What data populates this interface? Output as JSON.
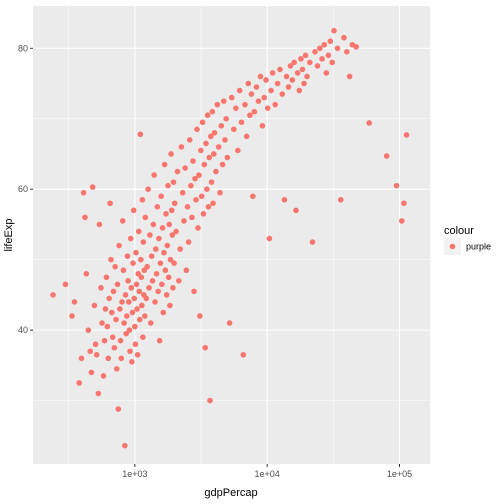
{
  "chart_data": {
    "type": "scatter",
    "xlabel": "gdpPercap",
    "ylabel": "lifeExp",
    "x_scale": "log10",
    "xlim": [
      170,
      170000
    ],
    "ylim": [
      21,
      86
    ],
    "x_ticks": [
      {
        "value": 1000,
        "label": "1e+03"
      },
      {
        "value": 10000,
        "label": "1e+04"
      },
      {
        "value": 100000,
        "label": "1e+05"
      }
    ],
    "y_ticks": [
      {
        "value": 40,
        "label": "40"
      },
      {
        "value": 60,
        "label": "60"
      },
      {
        "value": 80,
        "label": "80"
      }
    ],
    "grid": true,
    "legend": {
      "position": "right",
      "title": "colour",
      "entries": [
        {
          "label": "purple",
          "color": "#F8766D"
        }
      ]
    },
    "point_color": "#F8766D",
    "panel_background": "#EBEBEB",
    "grid_color": "#FFFFFF",
    "series": [
      {
        "name": "purple",
        "points": [
          [
            241,
            45.0
          ],
          [
            299,
            46.5
          ],
          [
            335,
            42.0
          ],
          [
            350,
            44.0
          ],
          [
            380,
            32.5
          ],
          [
            395,
            36.0
          ],
          [
            410,
            59.5
          ],
          [
            420,
            56.0
          ],
          [
            430,
            48.0
          ],
          [
            445,
            40.0
          ],
          [
            460,
            37.0
          ],
          [
            470,
            34.0
          ],
          [
            480,
            60.3
          ],
          [
            495,
            43.5
          ],
          [
            505,
            38.0
          ],
          [
            515,
            36.5
          ],
          [
            530,
            31.0
          ],
          [
            540,
            55.0
          ],
          [
            555,
            46.0
          ],
          [
            565,
            41.0
          ],
          [
            580,
            33.5
          ],
          [
            590,
            38.5
          ],
          [
            600,
            43.0
          ],
          [
            610,
            47.5
          ],
          [
            620,
            40.5
          ],
          [
            630,
            36.0
          ],
          [
            640,
            44.5
          ],
          [
            650,
            58.0
          ],
          [
            660,
            50.0
          ],
          [
            670,
            42.5
          ],
          [
            680,
            39.0
          ],
          [
            690,
            45.5
          ],
          [
            700,
            37.5
          ],
          [
            710,
            49.0
          ],
          [
            720,
            41.5
          ],
          [
            730,
            34.5
          ],
          [
            740,
            46.5
          ],
          [
            750,
            28.8
          ],
          [
            760,
            52.0
          ],
          [
            770,
            43.0
          ],
          [
            780,
            38.5
          ],
          [
            790,
            36.0
          ],
          [
            800,
            44.0
          ],
          [
            810,
            55.5
          ],
          [
            820,
            48.5
          ],
          [
            830,
            41.0
          ],
          [
            840,
            23.6
          ],
          [
            850,
            45.0
          ],
          [
            860,
            39.5
          ],
          [
            870,
            42.0
          ],
          [
            880,
            50.5
          ],
          [
            890,
            47.0
          ],
          [
            900,
            44.0
          ],
          [
            910,
            40.0
          ],
          [
            920,
            37.0
          ],
          [
            930,
            53.0
          ],
          [
            940,
            46.0
          ],
          [
            950,
            35.5
          ],
          [
            960,
            42.5
          ],
          [
            970,
            49.5
          ],
          [
            980,
            57.0
          ],
          [
            990,
            44.5
          ],
          [
            1000,
            40.5
          ],
          [
            1010,
            38.0
          ],
          [
            1020,
            51.0
          ],
          [
            1030,
            46.5
          ],
          [
            1040,
            43.0
          ],
          [
            1050,
            36.5
          ],
          [
            1060,
            48.0
          ],
          [
            1070,
            54.0
          ],
          [
            1080,
            45.5
          ],
          [
            1090,
            41.5
          ],
          [
            1100,
            67.8
          ],
          [
            1110,
            50.0
          ],
          [
            1120,
            47.5
          ],
          [
            1130,
            43.5
          ],
          [
            1140,
            58.5
          ],
          [
            1150,
            39.0
          ],
          [
            1160,
            52.5
          ],
          [
            1170,
            45.0
          ],
          [
            1180,
            48.5
          ],
          [
            1190,
            42.0
          ],
          [
            1200,
            56.0
          ],
          [
            1220,
            44.5
          ],
          [
            1240,
            49.0
          ],
          [
            1260,
            60.0
          ],
          [
            1280,
            46.0
          ],
          [
            1300,
            53.5
          ],
          [
            1320,
            41.0
          ],
          [
            1340,
            50.5
          ],
          [
            1360,
            47.0
          ],
          [
            1380,
            55.0
          ],
          [
            1400,
            62.0
          ],
          [
            1420,
            44.0
          ],
          [
            1440,
            51.5
          ],
          [
            1460,
            48.0
          ],
          [
            1480,
            57.5
          ],
          [
            1500,
            45.5
          ],
          [
            1520,
            53.0
          ],
          [
            1540,
            38.5
          ],
          [
            1560,
            49.5
          ],
          [
            1580,
            59.0
          ],
          [
            1600,
            46.5
          ],
          [
            1620,
            54.5
          ],
          [
            1640,
            42.5
          ],
          [
            1660,
            51.0
          ],
          [
            1680,
            63.5
          ],
          [
            1700,
            48.5
          ],
          [
            1720,
            56.5
          ],
          [
            1740,
            45.0
          ],
          [
            1760,
            52.0
          ],
          [
            1780,
            60.5
          ],
          [
            1800,
            47.5
          ],
          [
            1820,
            55.0
          ],
          [
            1840,
            43.5
          ],
          [
            1860,
            50.0
          ],
          [
            1880,
            65.0
          ],
          [
            1900,
            57.0
          ],
          [
            1920,
            53.5
          ],
          [
            1940,
            46.0
          ],
          [
            1960,
            61.0
          ],
          [
            1980,
            49.5
          ],
          [
            2000,
            58.0
          ],
          [
            2050,
            54.0
          ],
          [
            2100,
            62.5
          ],
          [
            2150,
            47.0
          ],
          [
            2200,
            51.5
          ],
          [
            2250,
            66.0
          ],
          [
            2300,
            59.5
          ],
          [
            2350,
            55.5
          ],
          [
            2400,
            63.0
          ],
          [
            2450,
            48.5
          ],
          [
            2500,
            57.5
          ],
          [
            2550,
            52.5
          ],
          [
            2600,
            67.0
          ],
          [
            2650,
            60.5
          ],
          [
            2700,
            56.0
          ],
          [
            2750,
            64.0
          ],
          [
            2800,
            45.5
          ],
          [
            2850,
            61.5
          ],
          [
            2900,
            58.5
          ],
          [
            2950,
            68.5
          ],
          [
            3000,
            54.5
          ],
          [
            3050,
            62.0
          ],
          [
            3100,
            42.0
          ],
          [
            3150,
            65.5
          ],
          [
            3200,
            59.0
          ],
          [
            3250,
            69.5
          ],
          [
            3300,
            56.5
          ],
          [
            3350,
            63.5
          ],
          [
            3400,
            37.5
          ],
          [
            3450,
            66.5
          ],
          [
            3500,
            60.0
          ],
          [
            3550,
            70.5
          ],
          [
            3600,
            57.5
          ],
          [
            3650,
            64.5
          ],
          [
            3700,
            30.0
          ],
          [
            3750,
            67.5
          ],
          [
            3800,
            61.0
          ],
          [
            3850,
            71.0
          ],
          [
            3900,
            58.0
          ],
          [
            3950,
            65.0
          ],
          [
            4000,
            68.0
          ],
          [
            4100,
            62.5
          ],
          [
            4200,
            72.0
          ],
          [
            4300,
            66.0
          ],
          [
            4400,
            59.5
          ],
          [
            4500,
            69.0
          ],
          [
            4600,
            63.5
          ],
          [
            4700,
            72.5
          ],
          [
            4800,
            67.0
          ],
          [
            4900,
            70.0
          ],
          [
            5000,
            64.5
          ],
          [
            5200,
            41.0
          ],
          [
            5400,
            73.0
          ],
          [
            5600,
            68.5
          ],
          [
            5800,
            71.5
          ],
          [
            6000,
            65.5
          ],
          [
            6200,
            74.0
          ],
          [
            6400,
            69.5
          ],
          [
            6600,
            36.5
          ],
          [
            6800,
            72.0
          ],
          [
            7000,
            67.5
          ],
          [
            7200,
            75.0
          ],
          [
            7400,
            70.5
          ],
          [
            7600,
            73.5
          ],
          [
            7800,
            59.0
          ],
          [
            8000,
            71.0
          ],
          [
            8300,
            74.5
          ],
          [
            8600,
            72.5
          ],
          [
            8900,
            76.0
          ],
          [
            9200,
            69.0
          ],
          [
            9500,
            73.0
          ],
          [
            9800,
            75.5
          ],
          [
            10100,
            71.5
          ],
          [
            10400,
            53.0
          ],
          [
            10700,
            74.0
          ],
          [
            11000,
            76.5
          ],
          [
            11500,
            72.0
          ],
          [
            12000,
            75.0
          ],
          [
            12500,
            77.0
          ],
          [
            13000,
            73.5
          ],
          [
            13500,
            58.5
          ],
          [
            14000,
            76.0
          ],
          [
            14500,
            74.5
          ],
          [
            15000,
            77.5
          ],
          [
            15500,
            75.5
          ],
          [
            16000,
            78.0
          ],
          [
            16500,
            57.0
          ],
          [
            17000,
            76.5
          ],
          [
            17500,
            74.0
          ],
          [
            18000,
            78.5
          ],
          [
            18500,
            77.0
          ],
          [
            19000,
            75.0
          ],
          [
            19500,
            79.0
          ],
          [
            20000,
            76.0
          ],
          [
            21000,
            78.0
          ],
          [
            22000,
            52.5
          ],
          [
            23000,
            79.5
          ],
          [
            24000,
            77.5
          ],
          [
            25000,
            80.0
          ],
          [
            26000,
            78.5
          ],
          [
            27000,
            80.5
          ],
          [
            28000,
            76.5
          ],
          [
            29000,
            79.0
          ],
          [
            30000,
            81.0
          ],
          [
            31000,
            78.0
          ],
          [
            32000,
            82.5
          ],
          [
            34000,
            80.0
          ],
          [
            36000,
            58.5
          ],
          [
            38000,
            81.5
          ],
          [
            40000,
            79.5
          ],
          [
            42000,
            76.0
          ],
          [
            44000,
            80.5
          ],
          [
            47000,
            80.2
          ],
          [
            59000,
            69.4
          ],
          [
            80000,
            64.7
          ],
          [
            95000,
            60.5
          ],
          [
            104000,
            55.5
          ],
          [
            108000,
            58.0
          ],
          [
            113000,
            67.7
          ]
        ]
      }
    ]
  }
}
